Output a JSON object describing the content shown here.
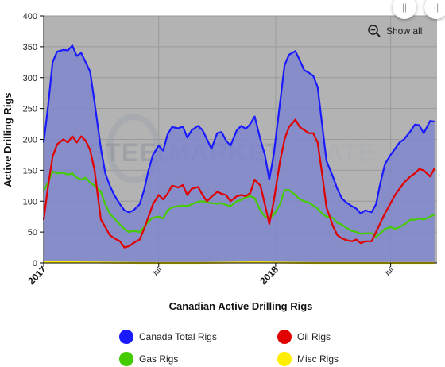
{
  "chart_data": {
    "type": "area",
    "title": "",
    "xlabel": "Canadian Active Drilling Rigs",
    "ylabel": "Active Drilling Rigs",
    "ylim": [
      0,
      400
    ],
    "yticks": [
      0,
      50,
      100,
      150,
      200,
      250,
      300,
      350,
      400
    ],
    "x_range": [
      "2017-01-01",
      "2018-09-12"
    ],
    "x_ticks": [
      {
        "date": "2017-01-01",
        "label": "2017",
        "major": true
      },
      {
        "date": "2017-07-01",
        "label": "Jul",
        "major": false
      },
      {
        "date": "2018-01-01",
        "label": "2018",
        "major": true
      },
      {
        "date": "2018-07-01",
        "label": "Jul",
        "major": false
      }
    ],
    "grid": true,
    "legend_position": "bottom",
    "series": [
      {
        "name": "Canada Total Rigs",
        "color": "#1a1aff",
        "fill": "#7f86cc",
        "points": [
          [
            "2017-01-01",
            195
          ],
          [
            "2017-01-08",
            255
          ],
          [
            "2017-01-15",
            325
          ],
          [
            "2017-01-22",
            342
          ],
          [
            "2017-02-01",
            345
          ],
          [
            "2017-02-08",
            344
          ],
          [
            "2017-02-15",
            352
          ],
          [
            "2017-02-22",
            335
          ],
          [
            "2017-03-01",
            340
          ],
          [
            "2017-03-08",
            325
          ],
          [
            "2017-03-15",
            310
          ],
          [
            "2017-03-22",
            260
          ],
          [
            "2017-04-01",
            185
          ],
          [
            "2017-04-08",
            145
          ],
          [
            "2017-04-15",
            125
          ],
          [
            "2017-04-22",
            110
          ],
          [
            "2017-05-01",
            95
          ],
          [
            "2017-05-08",
            85
          ],
          [
            "2017-05-15",
            82
          ],
          [
            "2017-05-22",
            85
          ],
          [
            "2017-06-01",
            95
          ],
          [
            "2017-06-08",
            118
          ],
          [
            "2017-06-15",
            150
          ],
          [
            "2017-06-22",
            175
          ],
          [
            "2017-07-01",
            190
          ],
          [
            "2017-07-08",
            182
          ],
          [
            "2017-07-15",
            208
          ],
          [
            "2017-07-22",
            220
          ],
          [
            "2017-08-01",
            218
          ],
          [
            "2017-08-08",
            221
          ],
          [
            "2017-08-15",
            203
          ],
          [
            "2017-08-22",
            215
          ],
          [
            "2017-09-01",
            222
          ],
          [
            "2017-09-08",
            215
          ],
          [
            "2017-09-15",
            200
          ],
          [
            "2017-09-22",
            185
          ],
          [
            "2017-10-01",
            210
          ],
          [
            "2017-10-08",
            212
          ],
          [
            "2017-10-15",
            198
          ],
          [
            "2017-10-22",
            190
          ],
          [
            "2017-11-01",
            215
          ],
          [
            "2017-11-08",
            222
          ],
          [
            "2017-11-15",
            217
          ],
          [
            "2017-11-22",
            225
          ],
          [
            "2017-11-29",
            237
          ],
          [
            "2017-12-08",
            200
          ],
          [
            "2017-12-15",
            175
          ],
          [
            "2017-12-22",
            135
          ],
          [
            "2017-12-29",
            175
          ],
          [
            "2018-01-08",
            260
          ],
          [
            "2018-01-15",
            320
          ],
          [
            "2018-01-22",
            337
          ],
          [
            "2018-02-01",
            343
          ],
          [
            "2018-02-08",
            328
          ],
          [
            "2018-02-15",
            312
          ],
          [
            "2018-02-22",
            308
          ],
          [
            "2018-03-01",
            303
          ],
          [
            "2018-03-08",
            285
          ],
          [
            "2018-03-15",
            225
          ],
          [
            "2018-03-22",
            165
          ],
          [
            "2018-04-01",
            140
          ],
          [
            "2018-04-08",
            120
          ],
          [
            "2018-04-15",
            105
          ],
          [
            "2018-04-22",
            98
          ],
          [
            "2018-05-01",
            92
          ],
          [
            "2018-05-08",
            88
          ],
          [
            "2018-05-15",
            80
          ],
          [
            "2018-05-22",
            85
          ],
          [
            "2018-06-01",
            82
          ],
          [
            "2018-06-08",
            95
          ],
          [
            "2018-06-15",
            130
          ],
          [
            "2018-06-22",
            160
          ],
          [
            "2018-07-01",
            175
          ],
          [
            "2018-07-08",
            185
          ],
          [
            "2018-07-15",
            195
          ],
          [
            "2018-07-22",
            200
          ],
          [
            "2018-08-01",
            213
          ],
          [
            "2018-08-08",
            224
          ],
          [
            "2018-08-15",
            223
          ],
          [
            "2018-08-22",
            210
          ],
          [
            "2018-09-01",
            230
          ],
          [
            "2018-09-08",
            229
          ]
        ]
      },
      {
        "name": "Oil Rigs",
        "color": "#e00000",
        "points": [
          [
            "2017-01-01",
            70
          ],
          [
            "2017-01-08",
            125
          ],
          [
            "2017-01-15",
            172
          ],
          [
            "2017-01-22",
            192
          ],
          [
            "2017-02-01",
            200
          ],
          [
            "2017-02-08",
            195
          ],
          [
            "2017-02-15",
            205
          ],
          [
            "2017-02-22",
            195
          ],
          [
            "2017-03-01",
            205
          ],
          [
            "2017-03-08",
            198
          ],
          [
            "2017-03-15",
            183
          ],
          [
            "2017-03-22",
            150
          ],
          [
            "2017-04-01",
            70
          ],
          [
            "2017-04-08",
            58
          ],
          [
            "2017-04-15",
            45
          ],
          [
            "2017-04-22",
            40
          ],
          [
            "2017-05-01",
            35
          ],
          [
            "2017-05-08",
            25
          ],
          [
            "2017-05-15",
            27
          ],
          [
            "2017-05-22",
            32
          ],
          [
            "2017-06-01",
            38
          ],
          [
            "2017-06-08",
            55
          ],
          [
            "2017-06-15",
            75
          ],
          [
            "2017-06-22",
            95
          ],
          [
            "2017-07-01",
            110
          ],
          [
            "2017-07-08",
            103
          ],
          [
            "2017-07-15",
            112
          ],
          [
            "2017-07-22",
            125
          ],
          [
            "2017-08-01",
            122
          ],
          [
            "2017-08-08",
            126
          ],
          [
            "2017-08-15",
            110
          ],
          [
            "2017-08-22",
            120
          ],
          [
            "2017-09-01",
            123
          ],
          [
            "2017-09-08",
            110
          ],
          [
            "2017-09-15",
            100
          ],
          [
            "2017-09-22",
            107
          ],
          [
            "2017-10-01",
            115
          ],
          [
            "2017-10-08",
            112
          ],
          [
            "2017-10-15",
            110
          ],
          [
            "2017-10-22",
            100
          ],
          [
            "2017-11-01",
            108
          ],
          [
            "2017-11-08",
            110
          ],
          [
            "2017-11-15",
            108
          ],
          [
            "2017-11-22",
            113
          ],
          [
            "2017-11-29",
            135
          ],
          [
            "2017-12-08",
            125
          ],
          [
            "2017-12-15",
            95
          ],
          [
            "2017-12-22",
            63
          ],
          [
            "2017-12-29",
            100
          ],
          [
            "2018-01-08",
            165
          ],
          [
            "2018-01-15",
            200
          ],
          [
            "2018-01-22",
            220
          ],
          [
            "2018-02-01",
            232
          ],
          [
            "2018-02-08",
            220
          ],
          [
            "2018-02-15",
            215
          ],
          [
            "2018-02-22",
            210
          ],
          [
            "2018-03-01",
            210
          ],
          [
            "2018-03-08",
            195
          ],
          [
            "2018-03-15",
            145
          ],
          [
            "2018-03-22",
            90
          ],
          [
            "2018-04-01",
            60
          ],
          [
            "2018-04-08",
            45
          ],
          [
            "2018-04-15",
            40
          ],
          [
            "2018-04-22",
            37
          ],
          [
            "2018-05-01",
            35
          ],
          [
            "2018-05-08",
            38
          ],
          [
            "2018-05-15",
            32
          ],
          [
            "2018-05-22",
            35
          ],
          [
            "2018-06-01",
            35
          ],
          [
            "2018-06-08",
            50
          ],
          [
            "2018-06-15",
            65
          ],
          [
            "2018-06-22",
            80
          ],
          [
            "2018-07-01",
            97
          ],
          [
            "2018-07-08",
            110
          ],
          [
            "2018-07-15",
            120
          ],
          [
            "2018-07-22",
            130
          ],
          [
            "2018-08-01",
            140
          ],
          [
            "2018-08-08",
            145
          ],
          [
            "2018-08-15",
            152
          ],
          [
            "2018-08-22",
            150
          ],
          [
            "2018-09-01",
            140
          ],
          [
            "2018-09-08",
            153
          ]
        ]
      },
      {
        "name": "Gas Rigs",
        "color": "#44cc00",
        "points": [
          [
            "2017-01-01",
            117
          ],
          [
            "2017-01-08",
            130
          ],
          [
            "2017-01-15",
            148
          ],
          [
            "2017-01-22",
            145
          ],
          [
            "2017-02-01",
            146
          ],
          [
            "2017-02-08",
            143
          ],
          [
            "2017-02-15",
            145
          ],
          [
            "2017-02-22",
            138
          ],
          [
            "2017-03-01",
            135
          ],
          [
            "2017-03-08",
            138
          ],
          [
            "2017-03-15",
            130
          ],
          [
            "2017-03-22",
            125
          ],
          [
            "2017-04-01",
            115
          ],
          [
            "2017-04-08",
            95
          ],
          [
            "2017-04-15",
            80
          ],
          [
            "2017-04-22",
            72
          ],
          [
            "2017-05-01",
            62
          ],
          [
            "2017-05-08",
            55
          ],
          [
            "2017-05-15",
            50
          ],
          [
            "2017-05-22",
            52
          ],
          [
            "2017-06-01",
            50
          ],
          [
            "2017-06-08",
            58
          ],
          [
            "2017-06-15",
            67
          ],
          [
            "2017-06-22",
            73
          ],
          [
            "2017-07-01",
            75
          ],
          [
            "2017-07-08",
            72
          ],
          [
            "2017-07-15",
            85
          ],
          [
            "2017-07-22",
            90
          ],
          [
            "2017-08-01",
            92
          ],
          [
            "2017-08-08",
            93
          ],
          [
            "2017-08-15",
            92
          ],
          [
            "2017-08-22",
            95
          ],
          [
            "2017-09-01",
            99
          ],
          [
            "2017-09-08",
            100
          ],
          [
            "2017-09-15",
            98
          ],
          [
            "2017-09-22",
            97
          ],
          [
            "2017-10-01",
            96
          ],
          [
            "2017-10-08",
            97
          ],
          [
            "2017-10-15",
            94
          ],
          [
            "2017-10-22",
            92
          ],
          [
            "2017-11-01",
            100
          ],
          [
            "2017-11-08",
            102
          ],
          [
            "2017-11-15",
            106
          ],
          [
            "2017-11-22",
            108
          ],
          [
            "2017-11-29",
            105
          ],
          [
            "2017-12-08",
            85
          ],
          [
            "2017-12-15",
            75
          ],
          [
            "2017-12-22",
            72
          ],
          [
            "2017-12-29",
            78
          ],
          [
            "2018-01-08",
            95
          ],
          [
            "2018-01-15",
            118
          ],
          [
            "2018-01-22",
            118
          ],
          [
            "2018-02-01",
            110
          ],
          [
            "2018-02-08",
            103
          ],
          [
            "2018-02-15",
            100
          ],
          [
            "2018-02-22",
            98
          ],
          [
            "2018-03-01",
            93
          ],
          [
            "2018-03-08",
            88
          ],
          [
            "2018-03-15",
            80
          ],
          [
            "2018-03-22",
            75
          ],
          [
            "2018-04-01",
            73
          ],
          [
            "2018-04-08",
            65
          ],
          [
            "2018-04-15",
            62
          ],
          [
            "2018-04-22",
            57
          ],
          [
            "2018-05-01",
            52
          ],
          [
            "2018-05-08",
            50
          ],
          [
            "2018-05-15",
            47
          ],
          [
            "2018-05-22",
            48
          ],
          [
            "2018-06-01",
            48
          ],
          [
            "2018-06-08",
            42
          ],
          [
            "2018-06-15",
            48
          ],
          [
            "2018-06-22",
            55
          ],
          [
            "2018-07-01",
            58
          ],
          [
            "2018-07-08",
            55
          ],
          [
            "2018-07-15",
            58
          ],
          [
            "2018-07-22",
            62
          ],
          [
            "2018-08-01",
            70
          ],
          [
            "2018-08-08",
            70
          ],
          [
            "2018-08-15",
            72
          ],
          [
            "2018-08-22",
            70
          ],
          [
            "2018-09-01",
            75
          ],
          [
            "2018-09-08",
            78
          ]
        ]
      },
      {
        "name": "Misc Rigs",
        "color": "#ffee00",
        "points": [
          [
            "2017-01-01",
            2
          ],
          [
            "2017-03-01",
            1
          ],
          [
            "2017-06-01",
            0
          ],
          [
            "2017-09-01",
            0
          ],
          [
            "2017-12-01",
            1
          ],
          [
            "2018-03-01",
            0
          ],
          [
            "2018-06-01",
            0
          ],
          [
            "2018-09-08",
            0
          ]
        ]
      }
    ]
  },
  "controls": {
    "show_all_label": "Show all",
    "zoom_icon": "zoom-out-magnifier-icon",
    "left_handle_glyph": "||",
    "right_handle_glyph": "||"
  },
  "watermark": {
    "line1": "STEEL",
    "line2": "MARKET",
    "line3": "UPDATE"
  }
}
